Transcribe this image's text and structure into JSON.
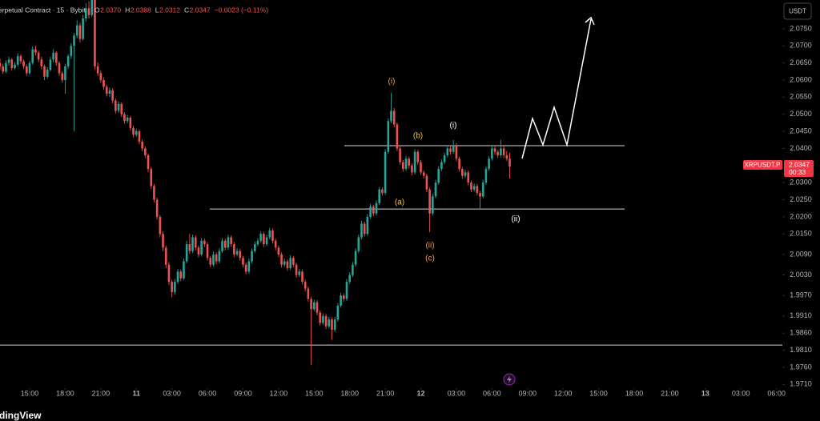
{
  "chart_data": {
    "type": "candlestick",
    "header": {
      "symbol": "erpetual Contract · 15 · Bybit",
      "fields": [
        "O",
        "H",
        "L",
        "C"
      ],
      "values": [
        "2.0370",
        "2.0388",
        "2.0312",
        "2.0347"
      ],
      "change": "−0.0023 (−0.11%)"
    },
    "currency": "USDT",
    "price_tag": {
      "symbol": "XRPUSDT.P",
      "price": "2.0347",
      "countdown": "00:33"
    },
    "brand": "dingView",
    "up_color": "#26a69a",
    "down_color": "#ef5350",
    "xlim": [
      0,
      264
    ],
    "xticks": [
      {
        "value": 10,
        "label": "15:00"
      },
      {
        "value": 22,
        "label": "18:00"
      },
      {
        "value": 34,
        "label": "21:00"
      },
      {
        "value": 46,
        "label": "11"
      },
      {
        "value": 58,
        "label": "03:00"
      },
      {
        "value": 70,
        "label": "06:00"
      },
      {
        "value": 82,
        "label": "09:00"
      },
      {
        "value": 94,
        "label": "12:00"
      },
      {
        "value": 106,
        "label": "15:00"
      },
      {
        "value": 118,
        "label": "18:00"
      },
      {
        "value": 130,
        "label": "21:00"
      },
      {
        "value": 142,
        "label": "12"
      },
      {
        "value": 154,
        "label": "03:00"
      },
      {
        "value": 166,
        "label": "06:00"
      },
      {
        "value": 178,
        "label": "09:00"
      },
      {
        "value": 190,
        "label": "12:00"
      },
      {
        "value": 202,
        "label": "15:00"
      },
      {
        "value": 214,
        "label": "18:00"
      },
      {
        "value": 226,
        "label": "21:00"
      },
      {
        "value": 238,
        "label": "13"
      },
      {
        "value": 250,
        "label": "03:00"
      },
      {
        "value": 262,
        "label": "06:00"
      }
    ],
    "ylim": [
      1.9699,
      2.0834
    ],
    "yticks": [
      {
        "value": 2.075,
        "label": "2.0750"
      },
      {
        "value": 2.07,
        "label": "2.0700"
      },
      {
        "value": 2.065,
        "label": "2.0650"
      },
      {
        "value": 2.06,
        "label": "2.0600"
      },
      {
        "value": 2.055,
        "label": "2.0550"
      },
      {
        "value": 2.05,
        "label": "2.0500"
      },
      {
        "value": 2.045,
        "label": "2.0450"
      },
      {
        "value": 2.04,
        "label": "2.0400"
      },
      {
        "value": 2.03,
        "label": "2.0300"
      },
      {
        "value": 2.025,
        "label": "2.0250"
      },
      {
        "value": 2.02,
        "label": "2.0200"
      },
      {
        "value": 2.015,
        "label": "2.0150"
      },
      {
        "value": 2.009,
        "label": "2.0090"
      },
      {
        "value": 2.003,
        "label": "2.0030"
      },
      {
        "value": 1.997,
        "label": "1.9970"
      },
      {
        "value": 1.991,
        "label": "1.9910"
      },
      {
        "value": 1.986,
        "label": "1.9860"
      },
      {
        "value": 1.981,
        "label": "1.9810"
      },
      {
        "value": 1.976,
        "label": "1.9760"
      },
      {
        "value": 1.971,
        "label": "1.9710"
      }
    ],
    "hlines": [
      2.0408,
      2.0223,
      1.9825
    ],
    "annotations": [
      {
        "text": "(i)",
        "color": "#f0a040"
      },
      {
        "text": "(b)",
        "color": "#f0c040"
      },
      {
        "text": "(i)",
        "color": "#ffffff"
      },
      {
        "text": "(a)",
        "color": "#f0c040"
      },
      {
        "text": "(ii)",
        "color": "#f0a040"
      },
      {
        "text": "(c)",
        "color": "#f0a040"
      },
      {
        "text": "(ii)",
        "color": "#ffffff"
      }
    ],
    "ohlc": [
      [
        2.065,
        2.0662,
        2.063,
        2.064
      ],
      [
        2.064,
        2.0648,
        2.0618,
        2.0625
      ],
      [
        2.0625,
        2.0658,
        2.062,
        2.065
      ],
      [
        2.065,
        2.0668,
        2.0642,
        2.066
      ],
      [
        2.066,
        2.0664,
        2.0628,
        2.0635
      ],
      [
        2.0635,
        2.0652,
        2.063,
        2.0645
      ],
      [
        2.0645,
        2.0678,
        2.064,
        2.067
      ],
      [
        2.067,
        2.0675,
        2.0648,
        2.0655
      ],
      [
        2.0655,
        2.066,
        2.0632,
        2.064
      ],
      [
        2.064,
        2.0645,
        2.0612,
        2.062
      ],
      [
        2.062,
        2.0656,
        2.0615,
        2.065
      ],
      [
        2.065,
        2.0698,
        2.0645,
        2.069
      ],
      [
        2.069,
        2.07,
        2.0672,
        2.068
      ],
      [
        2.068,
        2.0686,
        2.0652,
        2.066
      ],
      [
        2.066,
        2.0668,
        2.0632,
        2.064
      ],
      [
        2.064,
        2.0645,
        2.06,
        2.061
      ],
      [
        2.061,
        2.0638,
        2.0604,
        2.063
      ],
      [
        2.063,
        2.0668,
        2.0625,
        2.066
      ],
      [
        2.066,
        2.069,
        2.0652,
        2.068
      ],
      [
        2.068,
        2.0684,
        2.0642,
        2.065
      ],
      [
        2.065,
        2.0655,
        2.0612,
        2.062
      ],
      [
        2.062,
        2.0626,
        2.0592,
        2.06
      ],
      [
        2.06,
        2.0648,
        2.056,
        2.064
      ],
      [
        2.064,
        2.0676,
        2.0632,
        2.067
      ],
      [
        2.067,
        2.0708,
        2.0662,
        2.07
      ],
      [
        2.07,
        2.0738,
        2.045,
        2.073
      ],
      [
        2.073,
        2.0775,
        2.0722,
        2.076
      ],
      [
        2.076,
        2.0768,
        2.071,
        2.072
      ],
      [
        2.072,
        2.079,
        2.0715,
        2.078
      ],
      [
        2.078,
        2.0825,
        2.077,
        2.081
      ],
      [
        2.081,
        2.083,
        2.078,
        2.079
      ],
      [
        2.079,
        2.086,
        2.0785,
        2.085
      ],
      [
        2.085,
        2.087,
        2.063,
        2.064
      ],
      [
        2.064,
        2.0652,
        2.0612,
        2.062
      ],
      [
        2.062,
        2.0628,
        2.0592,
        2.06
      ],
      [
        2.06,
        2.0608,
        2.0572,
        2.058
      ],
      [
        2.058,
        2.0586,
        2.0552,
        2.056
      ],
      [
        2.056,
        2.0578,
        2.055,
        2.057
      ],
      [
        2.057,
        2.0576,
        2.0532,
        2.054
      ],
      [
        2.054,
        2.0546,
        2.0502,
        2.051
      ],
      [
        2.051,
        2.0538,
        2.0504,
        2.053
      ],
      [
        2.053,
        2.0535,
        2.0492,
        2.05
      ],
      [
        2.05,
        2.0506,
        2.0472,
        2.048
      ],
      [
        2.048,
        2.0498,
        2.0474,
        2.049
      ],
      [
        2.049,
        2.0495,
        2.0452,
        2.046
      ],
      [
        2.046,
        2.0466,
        2.0432,
        2.044
      ],
      [
        2.044,
        2.0458,
        2.0434,
        2.045
      ],
      [
        2.045,
        2.0455,
        2.0412,
        2.042
      ],
      [
        2.042,
        2.0426,
        2.0392,
        2.04
      ],
      [
        2.04,
        2.0406,
        2.0372,
        2.038
      ],
      [
        2.038,
        2.0385,
        2.033,
        2.034
      ],
      [
        2.034,
        2.0346,
        2.0282,
        2.029
      ],
      [
        2.029,
        2.0296,
        2.0242,
        2.025
      ],
      [
        2.025,
        2.0256,
        2.0192,
        2.02
      ],
      [
        2.02,
        2.0206,
        2.014,
        2.015
      ],
      [
        2.015,
        2.0158,
        2.01,
        2.011
      ],
      [
        2.011,
        2.0116,
        2.005,
        2.006
      ],
      [
        2.006,
        2.0068,
        2.0,
        2.001
      ],
      [
        2.001,
        2.0016,
        1.9965,
        1.998
      ],
      [
        1.998,
        2.0018,
        1.9972,
        2.001
      ],
      [
        2.001,
        2.0048,
        2.0004,
        2.004
      ],
      [
        2.004,
        2.0046,
        2.0012,
        2.002
      ],
      [
        2.002,
        2.0078,
        2.0015,
        2.007
      ],
      [
        2.007,
        2.013,
        2.0064,
        2.012
      ],
      [
        2.012,
        2.015,
        2.0092,
        2.01
      ],
      [
        2.01,
        2.0148,
        2.0094,
        2.014
      ],
      [
        2.014,
        2.0146,
        2.0102,
        2.011
      ],
      [
        2.011,
        2.0116,
        2.0082,
        2.009
      ],
      [
        2.009,
        2.0138,
        2.0084,
        2.013
      ],
      [
        2.013,
        2.0136,
        2.0112,
        2.012
      ],
      [
        2.012,
        2.0126,
        2.0072,
        2.008
      ],
      [
        2.008,
        2.0086,
        2.0052,
        2.006
      ],
      [
        2.006,
        2.0098,
        2.0054,
        2.009
      ],
      [
        2.009,
        2.0096,
        2.0062,
        2.007
      ],
      [
        2.007,
        2.0108,
        2.0064,
        2.01
      ],
      [
        2.01,
        2.0138,
        2.0094,
        2.013
      ],
      [
        2.013,
        2.0136,
        2.0102,
        2.011
      ],
      [
        2.011,
        2.0148,
        2.0104,
        2.014
      ],
      [
        2.014,
        2.0146,
        2.0112,
        2.012
      ],
      [
        2.012,
        2.0126,
        2.0082,
        2.009
      ],
      [
        2.009,
        2.0108,
        2.0084,
        2.01
      ],
      [
        2.01,
        2.0106,
        2.0072,
        2.008
      ],
      [
        2.008,
        2.0086,
        2.0052,
        2.006
      ],
      [
        2.006,
        2.0066,
        2.0032,
        2.004
      ],
      [
        2.004,
        2.0078,
        2.0034,
        2.007
      ],
      [
        2.007,
        2.0108,
        2.0064,
        2.01
      ],
      [
        2.01,
        2.0128,
        2.0094,
        2.012
      ],
      [
        2.012,
        2.0138,
        2.0114,
        2.013
      ],
      [
        2.013,
        2.0158,
        2.0124,
        2.015
      ],
      [
        2.015,
        2.0156,
        2.0112,
        2.012
      ],
      [
        2.012,
        2.0148,
        2.0114,
        2.014
      ],
      [
        2.014,
        2.0168,
        2.0134,
        2.016
      ],
      [
        2.016,
        2.0166,
        2.0122,
        2.013
      ],
      [
        2.013,
        2.0136,
        2.0102,
        2.011
      ],
      [
        2.011,
        2.0116,
        2.0082,
        2.009
      ],
      [
        2.009,
        2.0096,
        2.0052,
        2.006
      ],
      [
        2.006,
        2.0078,
        2.0054,
        2.007
      ],
      [
        2.007,
        2.0076,
        2.0042,
        2.005
      ],
      [
        2.005,
        2.0088,
        2.0044,
        2.008
      ],
      [
        2.008,
        2.0086,
        2.0052,
        2.006
      ],
      [
        2.006,
        2.0066,
        2.0022,
        2.003
      ],
      [
        2.003,
        2.0048,
        2.0024,
        2.004
      ],
      [
        2.004,
        2.0046,
        2.0002,
        2.001
      ],
      [
        2.001,
        2.0016,
        1.9982,
        1.999
      ],
      [
        1.999,
        1.9996,
        1.9952,
        1.996
      ],
      [
        1.996,
        1.9966,
        1.9767,
        1.993
      ],
      [
        1.993,
        1.9958,
        1.9924,
        1.995
      ],
      [
        1.995,
        1.9956,
        1.9912,
        1.992
      ],
      [
        1.992,
        1.9926,
        1.9882,
        1.989
      ],
      [
        1.989,
        1.9918,
        1.9884,
        1.991
      ],
      [
        1.991,
        1.9916,
        1.9872,
        1.988
      ],
      [
        1.988,
        1.9908,
        1.9874,
        1.99
      ],
      [
        1.99,
        1.9906,
        1.984,
        1.987
      ],
      [
        1.987,
        1.9908,
        1.9864,
        1.99
      ],
      [
        1.99,
        1.9948,
        1.9894,
        1.994
      ],
      [
        1.994,
        1.9978,
        1.9934,
        1.997
      ],
      [
        1.997,
        1.9976,
        1.9952,
        1.996
      ],
      [
        1.996,
        2.0018,
        1.9954,
        2.001
      ],
      [
        2.001,
        2.0038,
        2.0004,
        2.003
      ],
      [
        2.003,
        2.0068,
        2.0024,
        2.006
      ],
      [
        2.006,
        2.0108,
        2.0054,
        2.01
      ],
      [
        2.01,
        2.0148,
        2.0094,
        2.014
      ],
      [
        2.014,
        2.0188,
        2.0134,
        2.018
      ],
      [
        2.018,
        2.0186,
        2.0142,
        2.015
      ],
      [
        2.015,
        2.0208,
        2.0144,
        2.02
      ],
      [
        2.02,
        2.0238,
        2.0194,
        2.023
      ],
      [
        2.023,
        2.0236,
        2.0202,
        2.021
      ],
      [
        2.021,
        2.0248,
        2.0204,
        2.024
      ],
      [
        2.024,
        2.0288,
        2.0234,
        2.028
      ],
      [
        2.028,
        2.0286,
        2.0262,
        2.027
      ],
      [
        2.027,
        2.0398,
        2.0264,
        2.039
      ],
      [
        2.039,
        2.0488,
        2.0384,
        2.048
      ],
      [
        2.048,
        2.0562,
        2.0474,
        2.051
      ],
      [
        2.051,
        2.0518,
        2.0462,
        2.047
      ],
      [
        2.047,
        2.0476,
        2.0392,
        2.04
      ],
      [
        2.04,
        2.0406,
        2.0352,
        2.036
      ],
      [
        2.036,
        2.0366,
        2.0332,
        2.034
      ],
      [
        2.034,
        2.0378,
        2.0334,
        2.037
      ],
      [
        2.037,
        2.0376,
        2.0342,
        2.035
      ],
      [
        2.035,
        2.0356,
        2.0322,
        2.033
      ],
      [
        2.033,
        2.0398,
        2.0324,
        2.039
      ],
      [
        2.039,
        2.0396,
        2.0352,
        2.036
      ],
      [
        2.036,
        2.0366,
        2.0322,
        2.033
      ],
      [
        2.033,
        2.0336,
        2.0312,
        2.032
      ],
      [
        2.032,
        2.0326,
        2.0272,
        2.028
      ],
      [
        2.028,
        2.0286,
        2.0155,
        2.021
      ],
      [
        2.021,
        2.0268,
        2.0204,
        2.026
      ],
      [
        2.026,
        2.0308,
        2.0254,
        2.03
      ],
      [
        2.03,
        2.0348,
        2.0294,
        2.034
      ],
      [
        2.034,
        2.0368,
        2.0334,
        2.036
      ],
      [
        2.036,
        2.0388,
        2.0354,
        2.038
      ],
      [
        2.038,
        2.0408,
        2.0374,
        2.04
      ],
      [
        2.04,
        2.0406,
        2.0382,
        2.039
      ],
      [
        2.039,
        2.0425,
        2.0384,
        2.041
      ],
      [
        2.041,
        2.0416,
        2.0362,
        2.037
      ],
      [
        2.037,
        2.0376,
        2.0332,
        2.034
      ],
      [
        2.034,
        2.0346,
        2.0312,
        2.032
      ],
      [
        2.032,
        2.0338,
        2.0314,
        2.033
      ],
      [
        2.033,
        2.0336,
        2.0292,
        2.03
      ],
      [
        2.03,
        2.0306,
        2.0272,
        2.028
      ],
      [
        2.028,
        2.0298,
        2.0274,
        2.029
      ],
      [
        2.029,
        2.0296,
        2.0262,
        2.027
      ],
      [
        2.027,
        2.0276,
        2.0222,
        2.026
      ],
      [
        2.026,
        2.0308,
        2.0254,
        2.03
      ],
      [
        2.03,
        2.0348,
        2.0294,
        2.034
      ],
      [
        2.034,
        2.0378,
        2.0334,
        2.037
      ],
      [
        2.037,
        2.0408,
        2.0364,
        2.04
      ],
      [
        2.04,
        2.0406,
        2.0382,
        2.039
      ],
      [
        2.039,
        2.0396,
        2.0372,
        2.038
      ],
      [
        2.038,
        2.0425,
        2.0374,
        2.04
      ],
      [
        2.04,
        2.0406,
        2.0372,
        2.038
      ],
      [
        2.038,
        2.0392,
        2.0364,
        2.037
      ],
      [
        2.037,
        2.0388,
        2.0312,
        2.0347
      ]
    ]
  }
}
